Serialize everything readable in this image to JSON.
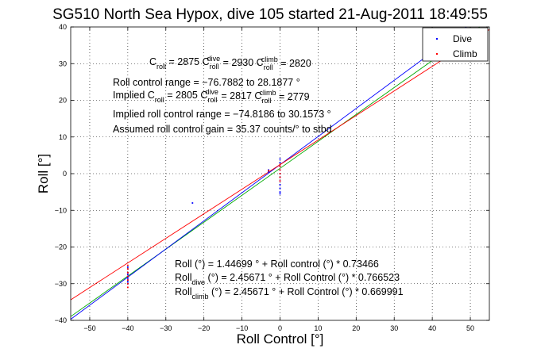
{
  "chart_data": {
    "type": "scatter",
    "title": "SG510 North Sea Hypox, dive 105 started 21-Aug-2011 18:49:55",
    "xlabel": "Roll Control [°]",
    "ylabel": "Roll [°]",
    "xlim": [
      -55,
      55
    ],
    "ylim": [
      -40,
      40
    ],
    "xticks": [
      -50,
      -40,
      -30,
      -20,
      -10,
      0,
      10,
      20,
      30,
      40,
      50
    ],
    "yticks": [
      -40,
      -30,
      -20,
      -10,
      0,
      10,
      20,
      30,
      40
    ],
    "grid": true,
    "legend_position": "top-right",
    "colors": {
      "dive": "#0000ff",
      "climb": "#ff0000",
      "combined_fit": "#00aa00"
    },
    "series": [
      {
        "name": "Dive",
        "kind": "points",
        "color": "#0000ff",
        "points": [
          [
            -40,
            -26
          ],
          [
            -40,
            -27
          ],
          [
            -40,
            -27.5
          ],
          [
            -40,
            -28
          ],
          [
            -40,
            -28.5
          ],
          [
            -40,
            -29
          ],
          [
            -40,
            -29.5
          ],
          [
            -40,
            -30
          ],
          [
            -40,
            -25.5
          ],
          [
            0,
            -5
          ],
          [
            0,
            -4
          ],
          [
            0,
            -3
          ],
          [
            0,
            -2
          ],
          [
            0,
            -1
          ],
          [
            0,
            0
          ],
          [
            0,
            1
          ],
          [
            0,
            2
          ],
          [
            0,
            3
          ],
          [
            0,
            4
          ],
          [
            0,
            -5.5
          ],
          [
            -3,
            0.5
          ],
          [
            -3,
            1
          ],
          [
            -23,
            -8
          ]
        ]
      },
      {
        "name": "Climb",
        "kind": "points",
        "color": "#ff0000",
        "points": [
          [
            -40,
            -26
          ],
          [
            -40,
            -27
          ],
          [
            -40,
            -28
          ],
          [
            -40,
            -29
          ],
          [
            -40,
            -30
          ],
          [
            -40,
            -31
          ],
          [
            -40,
            -25
          ],
          [
            0,
            -2
          ],
          [
            0,
            -1
          ],
          [
            0,
            0
          ],
          [
            0,
            1
          ],
          [
            0,
            2
          ],
          [
            0,
            2.5
          ],
          [
            -3,
            0.8
          ]
        ]
      },
      {
        "kind": "fit",
        "color": "#00aa00",
        "intercept": 1.44699,
        "slope": 0.73466
      },
      {
        "kind": "fit",
        "color": "#0000ff",
        "intercept": 2.45671,
        "slope": 0.766523
      },
      {
        "kind": "fit",
        "color": "#ff0000",
        "intercept": 2.45671,
        "slope": 0.669991
      }
    ],
    "annotations": [
      {
        "parts": [
          [
            "C",
            ""
          ],
          [
            "roll",
            "sub"
          ],
          [
            " = 2875     C",
            ""
          ],
          [
            "roll",
            "sub"
          ],
          [
            "dive",
            "sup"
          ],
          [
            " = 2930     C",
            ""
          ],
          [
            "roll",
            "sub"
          ],
          [
            "climb",
            "sup"
          ],
          [
            " = 2820",
            ""
          ]
        ]
      },
      {
        "parts": [
          [
            "Roll control range = −76.7882 to 28.1877 °",
            ""
          ]
        ]
      },
      {
        "parts": [
          [
            "Implied C",
            ""
          ],
          [
            "roll",
            "sub"
          ],
          [
            " = 2805     C",
            ""
          ],
          [
            "roll",
            "sub"
          ],
          [
            "dive",
            "sup"
          ],
          [
            " = 2817     C",
            ""
          ],
          [
            "roll",
            "sub"
          ],
          [
            "climb",
            "sup"
          ],
          [
            " = 2779",
            ""
          ]
        ]
      },
      {
        "parts": [
          [
            "Implied roll control range = −74.8186 to 30.1573 °",
            ""
          ]
        ]
      },
      {
        "parts": [
          [
            "Assumed roll control gain = 35.37 counts/° to stbd",
            ""
          ]
        ]
      },
      {
        "parts": [
          [
            "Roll (°) = 1.44699 ° + Roll control (°) * 0.73466",
            ""
          ]
        ]
      },
      {
        "parts": [
          [
            "Roll",
            ""
          ],
          [
            "dive",
            "sub"
          ],
          [
            "  (°) = 2.45671 ° + Roll Control (°) * 0.766523",
            ""
          ]
        ]
      },
      {
        "parts": [
          [
            "Roll",
            ""
          ],
          [
            "climb",
            "sub"
          ],
          [
            "  (°) = 2.45671 ° + Roll Control (°) * 0.669991",
            ""
          ]
        ]
      }
    ]
  }
}
